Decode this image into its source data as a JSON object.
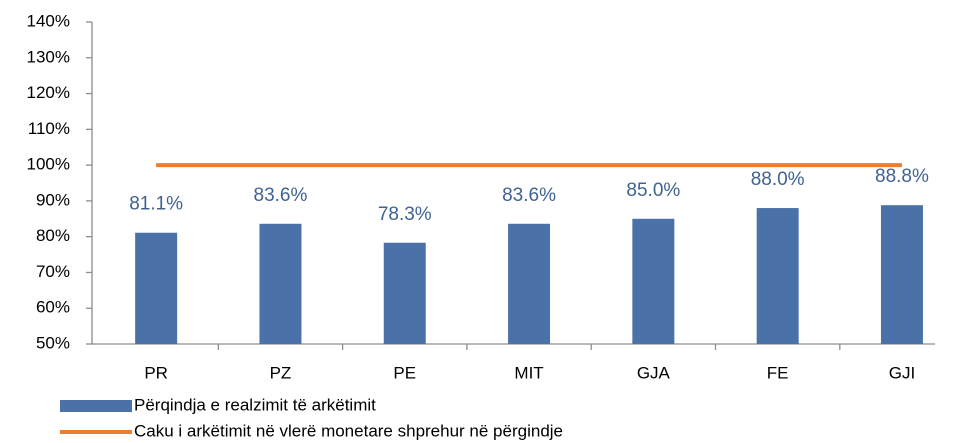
{
  "chart_data": {
    "type": "bar",
    "categories": [
      "PR",
      "PZ",
      "PE",
      "MIT",
      "GJA",
      "FE",
      "GJI"
    ],
    "series": [
      {
        "name": "Përqindja e realzimit të arkëtimit",
        "type": "bar",
        "color": "#4a72a8",
        "values": [
          81.1,
          83.6,
          78.3,
          83.6,
          85.0,
          88.0,
          88.8
        ],
        "value_labels": [
          "81.1%",
          "83.6%",
          "78.3%",
          "83.6%",
          "85.0%",
          "88.0%",
          "88.8%"
        ]
      },
      {
        "name": "Caku i arkëtimit në vlerë monetare shprehur në përgindje",
        "type": "line",
        "color": "#ed7d31",
        "values": [
          100,
          100,
          100,
          100,
          100,
          100,
          100
        ]
      }
    ],
    "ylim": [
      50,
      140
    ],
    "yticks": [
      {
        "value": 50,
        "label": "50%"
      },
      {
        "value": 60,
        "label": "60%"
      },
      {
        "value": 70,
        "label": "70%"
      },
      {
        "value": 80,
        "label": "80%"
      },
      {
        "value": 90,
        "label": "90%"
      },
      {
        "value": 100,
        "label": "100%"
      },
      {
        "value": 110,
        "label": "110%"
      },
      {
        "value": 120,
        "label": "120%"
      },
      {
        "value": 130,
        "label": "130%"
      },
      {
        "value": 140,
        "label": "140%"
      }
    ],
    "grid": false,
    "legend": "bottom"
  }
}
